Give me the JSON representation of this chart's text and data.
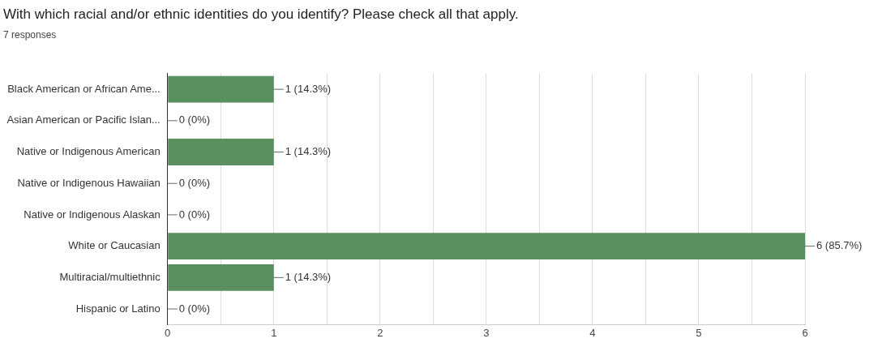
{
  "chart_data": {
    "type": "bar",
    "orientation": "horizontal",
    "title": "With which racial and/or ethnic identities do you identify? Please check all that apply.",
    "subtitle": "7 responses",
    "categories": [
      "Black American or African Ame...",
      "Asian American or Pacific Islan...",
      "Native or Indigenous American",
      "Native or Indigenous Hawaiian",
      "Native or Indigenous Alaskan",
      "White or Caucasian",
      "Multiracial/multiethnic",
      "Hispanic or Latino"
    ],
    "values": [
      1,
      0,
      1,
      0,
      0,
      6,
      1,
      0
    ],
    "value_labels": [
      "1 (14.3%)",
      "0 (0%)",
      "1 (14.3%)",
      "0 (0%)",
      "0 (0%)",
      "6 (85.7%)",
      "1 (14.3%)",
      "0 (0%)"
    ],
    "color": "#5a8f5f",
    "xlim": [
      0,
      6
    ],
    "xticks": [
      0,
      {
        "value": 0.5,
        "label": null
      },
      1,
      {
        "value": 1.5,
        "label": null
      },
      2,
      {
        "value": 2.5,
        "label": null
      },
      3,
      {
        "value": 3.5,
        "label": null
      },
      4,
      {
        "value": 4.5,
        "label": null
      },
      5,
      {
        "value": 5.5,
        "label": null
      },
      6
    ],
    "grid": "x",
    "legend": false
  }
}
